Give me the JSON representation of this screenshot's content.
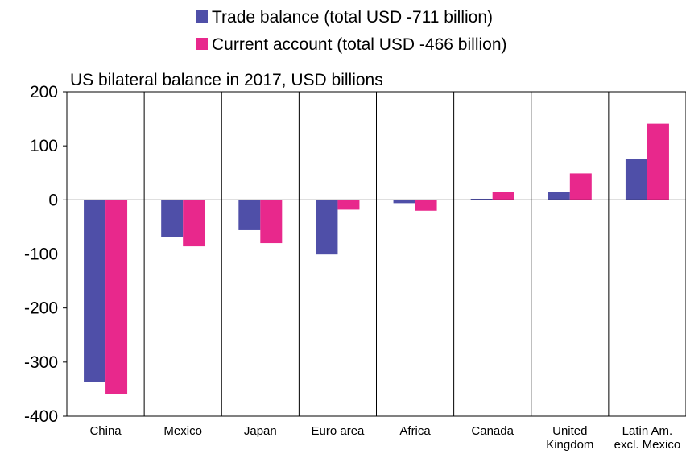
{
  "chart_data": {
    "type": "bar",
    "title": "US bilateral balance in 2017, USD billions",
    "xlabel": "",
    "ylabel": "",
    "ylim": [
      -400,
      200
    ],
    "yticks": [
      200,
      100,
      0,
      -100,
      -200,
      -300,
      -400
    ],
    "grid": "vertical category separators",
    "legend_position": "top",
    "categories": [
      [
        "China"
      ],
      [
        "Mexico"
      ],
      [
        "Japan"
      ],
      [
        "Euro area"
      ],
      [
        "Africa"
      ],
      [
        "Canada"
      ],
      [
        "United",
        "Kingdom"
      ],
      [
        "Latin Am.",
        "excl. Mexico"
      ]
    ],
    "series": [
      {
        "name": "Trade balance (total USD -711 billion)",
        "color": "#4F4FA8",
        "values": [
          -337,
          -69,
          -56,
          -101,
          -6,
          2,
          14,
          75
        ]
      },
      {
        "name": "Current account (total USD -466 billion)",
        "color": "#E8288C",
        "values": [
          -359,
          -86,
          -80,
          -18,
          -20,
          14,
          49,
          141
        ]
      }
    ]
  }
}
